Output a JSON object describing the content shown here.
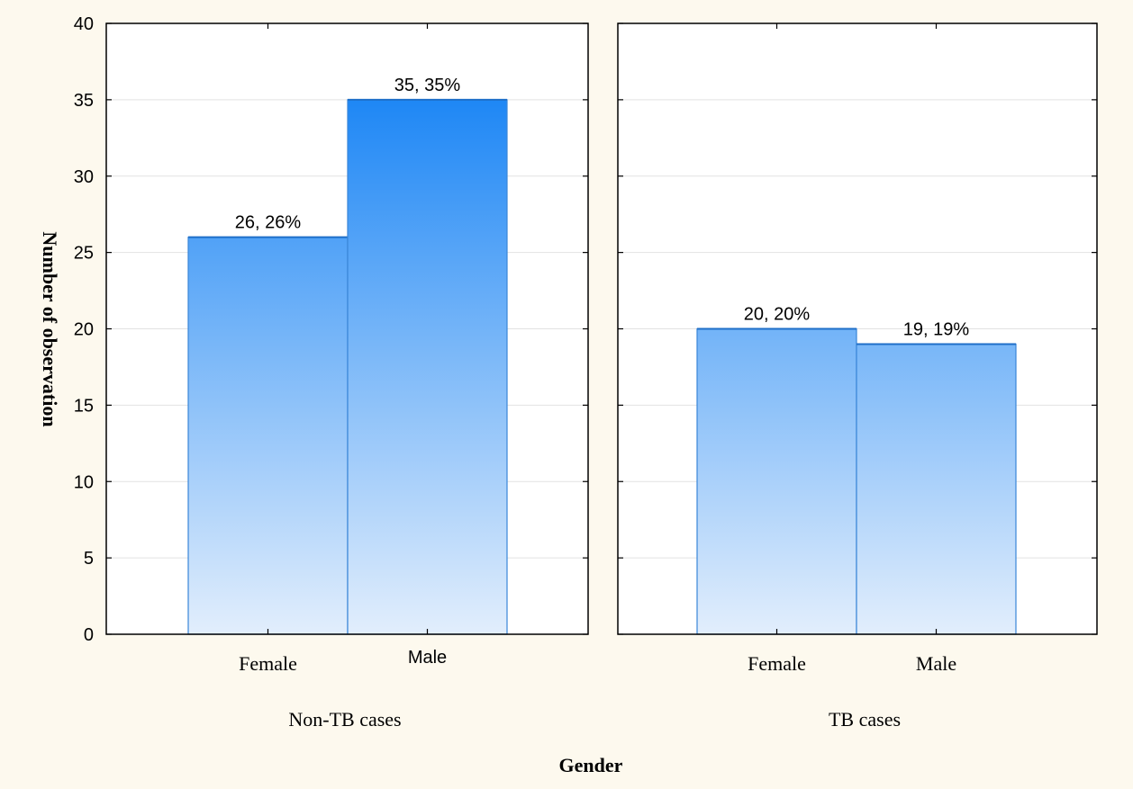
{
  "chart_data": {
    "type": "bar",
    "ylabel": "Number of observation",
    "xlabel": "Gender",
    "ylim": [
      0,
      40
    ],
    "yticks": [
      "0",
      "5",
      "10",
      "15",
      "20",
      "25",
      "30",
      "35",
      "40"
    ],
    "grid": true,
    "bar_color": "#1e87f5",
    "panels": [
      {
        "group": "Non-TB cases",
        "categories": [
          "Female",
          "Male"
        ],
        "values": [
          26,
          35
        ],
        "labels": [
          "26, 26%",
          "35, 35%"
        ]
      },
      {
        "group": "TB cases",
        "categories": [
          "Female",
          "Male"
        ],
        "values": [
          20,
          19
        ],
        "labels": [
          "20, 20%",
          "19, 19%"
        ]
      }
    ]
  }
}
